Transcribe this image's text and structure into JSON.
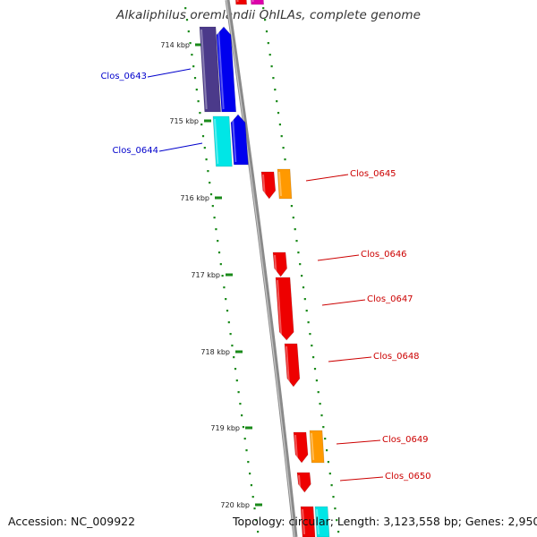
{
  "title": "Alkaliphilus oremlandii OhILAs, complete genome",
  "footer": {
    "accession": "Accession: NC_009922",
    "topology": "Topology: circular; Length: 3,123,558 bp; Genes: 2,950"
  },
  "colors": {
    "backbone": "#8a8a8a",
    "dots": "#1a8a1a",
    "label_blue": "#0000cc",
    "label_red": "#cc0000",
    "purple": "#4b3a8a",
    "blue": "#0000ee",
    "cyan": "#00e6e6",
    "red": "#ee0000",
    "orange": "#ff9900",
    "magenta": "#dd00aa"
  },
  "ticks": [
    {
      "label": "714 kbp"
    },
    {
      "label": "715 kbp"
    },
    {
      "label": "716 kbp"
    },
    {
      "label": "717 kbp"
    },
    {
      "label": "718 kbp"
    },
    {
      "label": "719 kbp"
    },
    {
      "label": "720 kbp"
    }
  ],
  "gene_labels": [
    {
      "text": "Clos_0643",
      "color": "blue"
    },
    {
      "text": "Clos_0644",
      "color": "blue"
    },
    {
      "text": "Clos_0645",
      "color": "red"
    },
    {
      "text": "Clos_0646",
      "color": "red"
    },
    {
      "text": "Clos_0647",
      "color": "red"
    },
    {
      "text": "Clos_0648",
      "color": "red"
    },
    {
      "text": "Clos_0649",
      "color": "red"
    },
    {
      "text": "Clos_0650",
      "color": "red"
    }
  ],
  "gene_blocks": [
    {
      "color": "magenta"
    },
    {
      "color": "red"
    },
    {
      "color": "purple"
    },
    {
      "color": "blue"
    },
    {
      "color": "cyan"
    },
    {
      "color": "blue"
    },
    {
      "color": "red"
    },
    {
      "color": "orange"
    },
    {
      "color": "red"
    },
    {
      "color": "red"
    },
    {
      "color": "red"
    },
    {
      "color": "red"
    },
    {
      "color": "orange"
    },
    {
      "color": "red"
    },
    {
      "color": "red"
    },
    {
      "color": "cyan"
    }
  ]
}
